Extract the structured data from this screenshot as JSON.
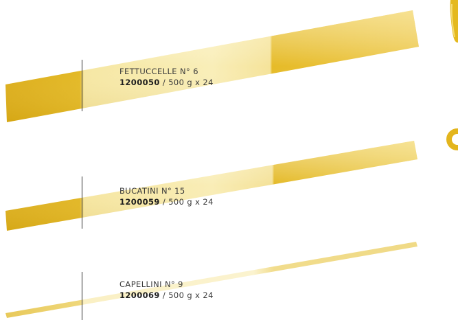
{
  "products": [
    {
      "name": "FETTUCCELLE N° 6",
      "code": "1200050",
      "package": " / 500 g x 24",
      "cross_section": "ribbon-cross-section-icon"
    },
    {
      "name": "BUCATINI N° 15",
      "code": "1200059",
      "package": " / 500 g x 24",
      "cross_section": "ring-cross-section-icon"
    },
    {
      "name": "CAPELLINI N° 9",
      "code": "1200069",
      "package": " / 500 g x 24",
      "cross_section": ""
    }
  ],
  "colors": {
    "pasta_dark": "#e0b21c",
    "pasta_light": "#f7e8a0",
    "text": "#3a3a3a",
    "rule": "#2a2a2a"
  }
}
